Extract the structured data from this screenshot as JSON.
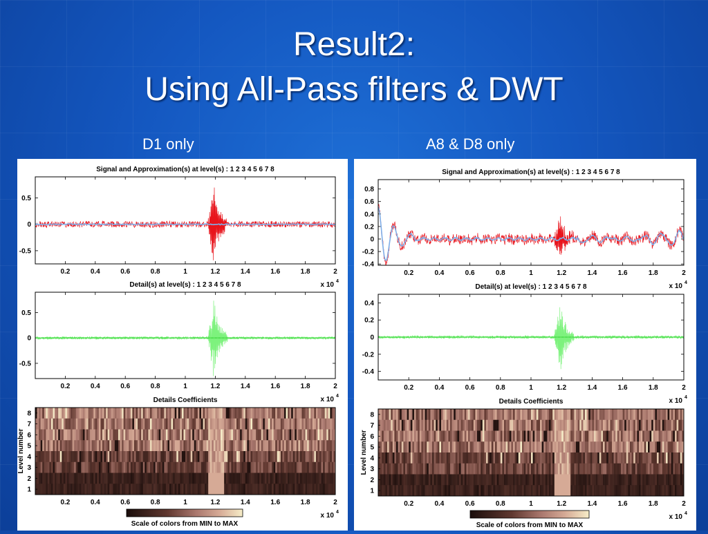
{
  "slide": {
    "title_line1": "Result2:",
    "title_line2": "Using All-Pass filters & DWT",
    "left_caption": "D1 only",
    "right_caption": "A8 & D8 only"
  },
  "colors": {
    "signal": "#e8141c",
    "approximation": "#7faee8",
    "detail": "#7df27d",
    "detail_line": "#2fd02f",
    "colormap_min": "#1a0d0b",
    "colormap_max": "#f6edc8"
  },
  "chart_data": [
    {
      "id": "left",
      "type": "line",
      "plots": [
        {
          "title": "Signal and Approximation(s) at level(s) : 1 2 3 4 5 6 7 8",
          "xticks": [
            "0.2",
            "0.4",
            "0.6",
            "0.8",
            "1",
            "1.2",
            "1.4",
            "1.6",
            "1.8",
            "2"
          ],
          "yticks": [
            "0.5",
            "0",
            "-0.5"
          ],
          "ylim": [
            -0.75,
            0.9
          ],
          "xlim": [
            0,
            2
          ],
          "x_multiplier": "x 10",
          "x_multiplier_exp": "4",
          "series": [
            "signal",
            "approximation"
          ],
          "burst_range": [
            1.15,
            1.28
          ],
          "burst_amplitude": 0.82,
          "noise_amplitude": 0.06
        },
        {
          "title": "Detail(s) at level(s) : 1 2 3 4 5 6 7 8",
          "xticks": [
            "0.2",
            "0.4",
            "0.6",
            "0.8",
            "1",
            "1.2",
            "1.4",
            "1.6",
            "1.8",
            "2"
          ],
          "yticks": [
            "0.5",
            "0",
            "-0.5"
          ],
          "ylim": [
            -0.8,
            0.9
          ],
          "xlim": [
            0,
            2
          ],
          "x_multiplier": "x 10",
          "x_multiplier_exp": "4",
          "series": [
            "detail"
          ],
          "burst_range": [
            1.15,
            1.28
          ],
          "burst_amplitude": 0.8,
          "noise_amplitude": 0.03
        },
        {
          "type": "heatmap",
          "title": "Details Coefficients",
          "ylabel": "Level number",
          "yticks": [
            "8",
            "7",
            "6",
            "5",
            "4",
            "3",
            "2",
            "1"
          ],
          "xticks": [
            "0.2",
            "0.4",
            "0.6",
            "0.8",
            "1",
            "1.2",
            "1.4",
            "1.6",
            "1.8",
            "2"
          ],
          "x_multiplier": "x 10",
          "x_multiplier_exp": "4",
          "colorbar_label": "Scale of colors from MIN to MAX"
        }
      ]
    },
    {
      "id": "right",
      "type": "line",
      "plots": [
        {
          "title": "Signal and Approximation(s) at level(s) : 1 2 3 4 5 6 7 8",
          "xticks": [
            "0.2",
            "0.4",
            "0.6",
            "0.8",
            "1",
            "1.2",
            "1.4",
            "1.6",
            "1.8",
            "2"
          ],
          "yticks": [
            "0.8",
            "0.6",
            "0.4",
            "0.2",
            "0",
            "-0.2",
            "-0.4"
          ],
          "ylim": [
            -0.42,
            0.95
          ],
          "xlim": [
            0,
            2
          ],
          "x_multiplier": "x 10",
          "x_multiplier_exp": "4",
          "series": [
            "signal",
            "approximation"
          ],
          "burst_range": [
            1.15,
            1.28
          ],
          "burst_amplitude": 0.4,
          "noise_amplitude": 0.08
        },
        {
          "title": "Detail(s) at level(s) : 1 2 3 4 5 6 7 8",
          "xticks": [
            "0.2",
            "0.4",
            "0.6",
            "0.8",
            "1",
            "1.2",
            "1.4",
            "1.6",
            "1.8",
            "2"
          ],
          "yticks": [
            "0.4",
            "0.2",
            "0",
            "-0.2",
            "-0.4"
          ],
          "ylim": [
            -0.5,
            0.5
          ],
          "xlim": [
            0,
            2
          ],
          "x_multiplier": "x 10",
          "x_multiplier_exp": "4",
          "series": [
            "detail"
          ],
          "burst_range": [
            1.15,
            1.28
          ],
          "burst_amplitude": 0.42,
          "noise_amplitude": 0.02
        },
        {
          "type": "heatmap",
          "title": "Details Coefficients",
          "ylabel": "Level number",
          "yticks": [
            "8",
            "7",
            "6",
            "5",
            "4",
            "3",
            "2",
            "1"
          ],
          "xticks": [
            "0.2",
            "0.4",
            "0.6",
            "0.8",
            "1",
            "1.2",
            "1.4",
            "1.6",
            "1.8",
            "2"
          ],
          "x_multiplier": "x 10",
          "x_multiplier_exp": "4",
          "colorbar_label": "Scale of colors from MIN to MAX"
        }
      ]
    }
  ]
}
